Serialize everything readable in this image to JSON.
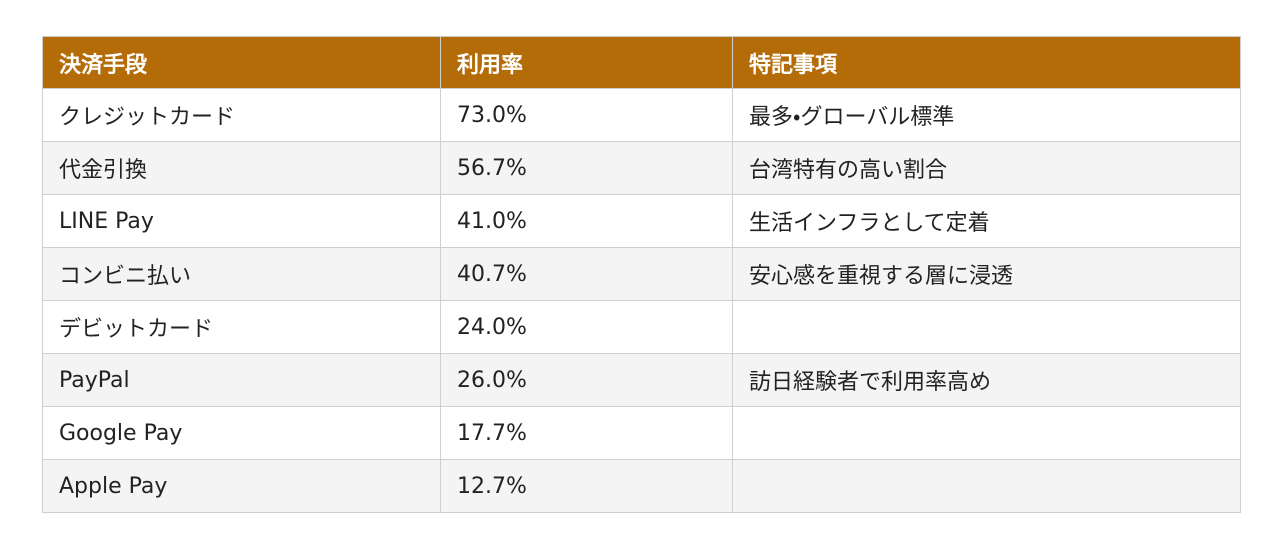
{
  "table": {
    "header": [
      "決済手段",
      "利用率",
      "特記事項"
    ],
    "rows": [
      [
        "クレジットカード",
        "73.0%",
        "最多・グローバル標準"
      ],
      [
        "代金引換",
        "56.7%",
        "台湾特有の高い割合"
      ],
      [
        "LINE Pay",
        "41.0%",
        "生活インフラとして定着"
      ],
      [
        "コンビニ払い",
        "40.7%",
        "安心感を重視する層に浸透"
      ],
      [
        "デビットカード",
        "24.0%",
        null
      ],
      [
        "PayPal",
        "26.0%",
        "訪日経験者で利用率高め"
      ],
      [
        "Google Pay",
        "17.7%",
        null
      ],
      [
        "Apple Pay",
        "12.7%",
        null
      ]
    ]
  }
}
